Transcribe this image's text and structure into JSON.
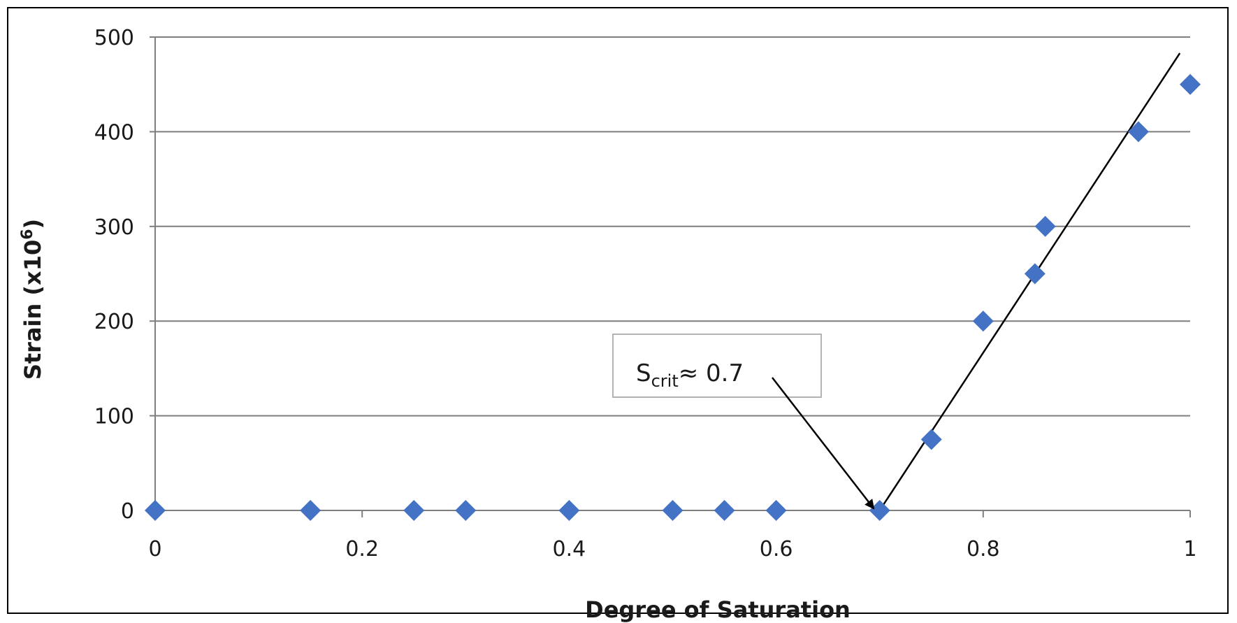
{
  "chart_data": {
    "type": "scatter",
    "title": "",
    "xlabel": "Degree of Saturation",
    "ylabel": {
      "prefix": "Strain (x10",
      "superscript": "6",
      "suffix": ")"
    },
    "xlim": [
      0,
      1
    ],
    "ylim": [
      0,
      500
    ],
    "xticks": [
      0,
      0.2,
      0.4,
      0.6,
      0.8,
      1
    ],
    "xtick_labels": [
      "0",
      "0.2",
      "0.4",
      "0.6",
      "0.8",
      "1"
    ],
    "yticks": [
      0,
      100,
      200,
      300,
      400,
      500
    ],
    "ytick_labels": [
      "0",
      "100",
      "200",
      "300",
      "400",
      "500"
    ],
    "grid": "horizontal",
    "legend": "none",
    "marker_color": "#4472C4",
    "trend_color": "#000000",
    "series": [
      {
        "x": [
          0,
          0.15,
          0.25,
          0.3,
          0.4,
          0.5,
          0.55,
          0.6,
          0.7,
          0.75,
          0.8,
          0.85,
          0.86,
          0.95,
          1.0
        ],
        "y": [
          0,
          0,
          0,
          0,
          0,
          0,
          0,
          0,
          0,
          75,
          200,
          250,
          300,
          400,
          450
        ]
      }
    ],
    "trendline": {
      "x": [
        0.7,
        0.99
      ],
      "y": [
        0,
        483
      ]
    },
    "annotation": {
      "text_main": "S",
      "text_subscript": "crit",
      "text_rest": "≈ 0.7",
      "points_to": {
        "x": 0.7,
        "y": 0
      }
    }
  }
}
